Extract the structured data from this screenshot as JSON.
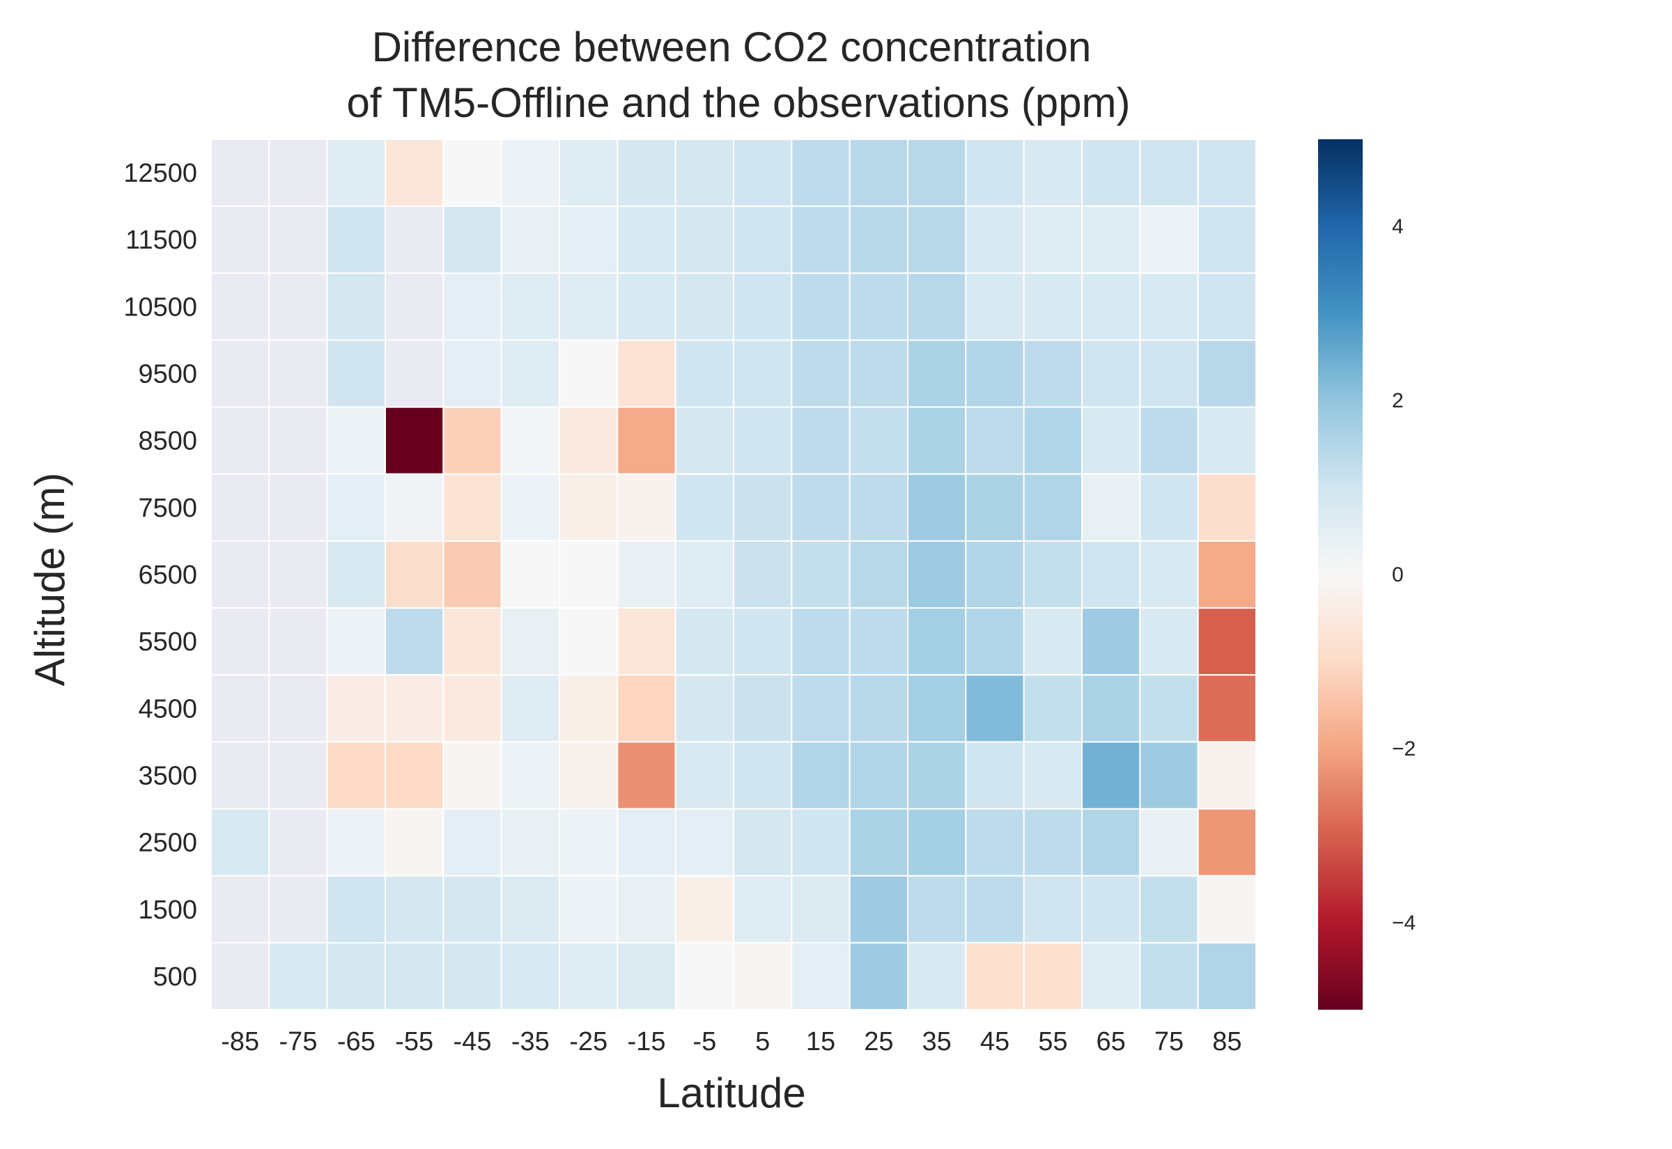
{
  "chart_data": {
    "type": "heatmap",
    "title_lines": [
      "Difference between CO2 concentration",
      "of TM5-Offline and the observations (ppm)"
    ],
    "xlabel": "Latitude",
    "ylabel": "Altitude (m)",
    "x": [
      "-85",
      "-75",
      "-65",
      "-55",
      "-45",
      "-35",
      "-25",
      "-15",
      "-5",
      "5",
      "15",
      "25",
      "35",
      "45",
      "55",
      "65",
      "75",
      "85"
    ],
    "y": [
      "12500",
      "11500",
      "10500",
      "9500",
      "8500",
      "7500",
      "6500",
      "5500",
      "4500",
      "3500",
      "2500",
      "1500",
      "500"
    ],
    "values": [
      [
        null,
        null,
        0.6,
        -0.6,
        0.0,
        0.3,
        0.6,
        0.9,
        0.9,
        1.0,
        1.3,
        1.4,
        1.4,
        1.0,
        0.8,
        1.0,
        1.0,
        1.0
      ],
      [
        null,
        null,
        1.0,
        null,
        0.9,
        0.4,
        0.5,
        0.8,
        0.9,
        1.0,
        1.3,
        1.4,
        1.4,
        0.8,
        0.6,
        0.6,
        0.3,
        1.0
      ],
      [
        null,
        null,
        0.9,
        null,
        0.5,
        0.6,
        0.6,
        0.8,
        0.9,
        1.0,
        1.3,
        1.3,
        1.4,
        0.8,
        0.8,
        0.8,
        0.8,
        1.0
      ],
      [
        null,
        null,
        1.0,
        null,
        0.5,
        0.6,
        0.0,
        -0.7,
        1.0,
        1.0,
        1.3,
        1.3,
        1.6,
        1.5,
        1.3,
        1.0,
        1.0,
        1.4
      ],
      [
        null,
        null,
        0.3,
        -5.0,
        -1.2,
        0.1,
        -0.5,
        -1.9,
        0.9,
        1.0,
        1.3,
        1.2,
        1.6,
        1.3,
        1.5,
        0.8,
        1.3,
        0.8
      ],
      [
        null,
        null,
        0.5,
        0.2,
        -0.7,
        0.3,
        -0.3,
        -0.2,
        1.0,
        1.1,
        1.3,
        1.3,
        1.8,
        1.6,
        1.5,
        0.4,
        1.0,
        -0.9
      ],
      [
        null,
        null,
        0.8,
        -0.9,
        -1.3,
        0.0,
        0.0,
        0.4,
        0.6,
        1.1,
        1.2,
        1.4,
        1.8,
        1.5,
        1.2,
        1.0,
        0.8,
        -1.9
      ],
      [
        null,
        null,
        0.3,
        1.3,
        -0.6,
        0.4,
        0.0,
        -0.6,
        0.9,
        1.0,
        1.3,
        1.3,
        1.7,
        1.5,
        0.8,
        1.8,
        0.8,
        -3.0
      ],
      [
        null,
        null,
        -0.4,
        -0.4,
        -0.5,
        0.6,
        -0.3,
        -1.1,
        0.9,
        1.1,
        1.3,
        1.4,
        1.7,
        2.2,
        1.2,
        1.6,
        1.2,
        -2.8
      ],
      [
        null,
        null,
        -1.0,
        -1.0,
        -0.1,
        0.3,
        -0.2,
        -2.3,
        0.8,
        1.0,
        1.5,
        1.5,
        1.6,
        1.0,
        0.8,
        2.4,
        1.8,
        -0.2
      ],
      [
        0.8,
        null,
        0.3,
        -0.1,
        0.5,
        0.4,
        0.3,
        0.5,
        0.5,
        0.9,
        1.0,
        1.6,
        1.7,
        1.3,
        1.3,
        1.5,
        0.4,
        -2.2
      ],
      [
        null,
        null,
        1.0,
        0.9,
        0.9,
        0.7,
        0.3,
        0.4,
        -0.3,
        0.6,
        0.7,
        1.8,
        1.3,
        1.3,
        1.0,
        1.0,
        1.2,
        -0.1
      ],
      [
        null,
        0.8,
        0.9,
        0.9,
        0.9,
        0.8,
        0.6,
        0.7,
        0.0,
        -0.1,
        0.5,
        1.8,
        0.8,
        -0.8,
        -0.8,
        0.6,
        1.2,
        1.5
      ]
    ],
    "colorbar": {
      "cmap": "RdBu",
      "range": [
        -5,
        5
      ],
      "ticks": [
        "−4",
        "−2",
        "0",
        "2",
        "4"
      ],
      "tick_values": [
        -4,
        -2,
        0,
        2,
        4
      ]
    },
    "missing_color": "#eaeaf2",
    "grid": false
  }
}
